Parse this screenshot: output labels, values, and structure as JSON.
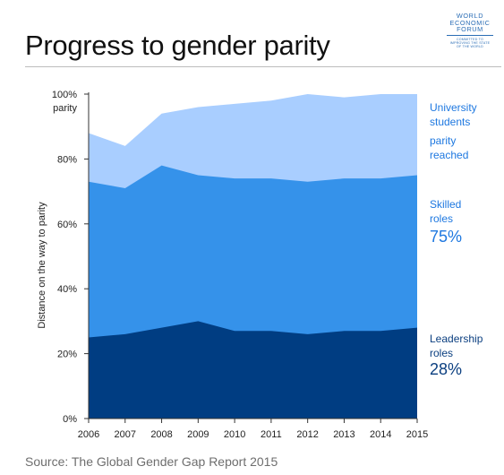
{
  "title": "Progress to gender parity",
  "logo": {
    "name_lines": [
      "WORLD",
      "ECONOMIC",
      "FORUM"
    ],
    "tagline_lines": [
      "COMMITTED TO",
      "IMPROVING THE STATE",
      "OF THE WORLD"
    ]
  },
  "source": "Source: The Global Gender Gap Report 2015",
  "colors": {
    "leadership": "#003d82",
    "skilled": "#3592ea",
    "university": "#a9ceff",
    "label_blue": "#1e78e0",
    "label_dark": "#0b3f80",
    "axis": "#333333"
  },
  "chart_data": {
    "type": "area",
    "stacking": "cumulative",
    "title": "Progress to gender parity",
    "ylabel": "Distance on the way to parity",
    "xlabel": "",
    "x": [
      2006,
      2007,
      2008,
      2009,
      2010,
      2011,
      2012,
      2013,
      2014,
      2015
    ],
    "ylim": [
      0,
      100
    ],
    "yticks": [
      0,
      20,
      40,
      60,
      80,
      100
    ],
    "ytick_labels": [
      "0%",
      "20%",
      "40%",
      "60%",
      "80%",
      "100%"
    ],
    "ytick_top_sublabel": "parity",
    "grid": false,
    "series": [
      {
        "key": "leadership",
        "name": "Leadership roles",
        "label_lines": [
          "Leadership",
          "roles"
        ],
        "end_label": "28%",
        "values": [
          25,
          26,
          28,
          30,
          27,
          27,
          26,
          27,
          27,
          28
        ]
      },
      {
        "key": "skilled",
        "name": "Skilled roles",
        "label_lines": [
          "Skilled",
          "roles"
        ],
        "end_label": "75%",
        "values": [
          73,
          71,
          78,
          75,
          74,
          74,
          73,
          74,
          74,
          75
        ]
      },
      {
        "key": "university",
        "name": "University students",
        "label_lines": [
          "University",
          "students"
        ],
        "extra_lines": [
          "parity",
          "reached"
        ],
        "values": [
          88,
          84,
          94,
          96,
          97,
          98,
          100,
          99,
          100,
          100
        ]
      }
    ]
  }
}
